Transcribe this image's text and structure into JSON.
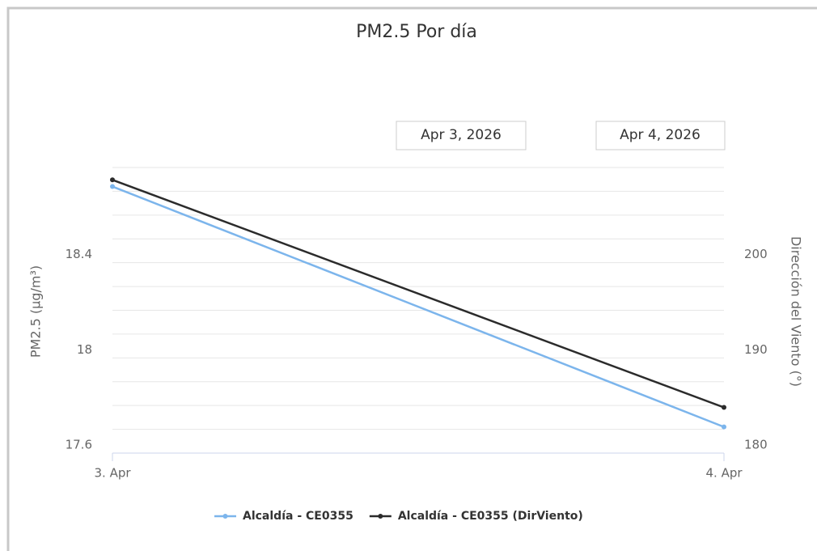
{
  "chart_data": {
    "type": "line",
    "title": "PM2.5 Por día",
    "date_from": "Apr 3, 2026",
    "date_to": "Apr 4, 2026",
    "categories": [
      "3. Apr",
      "4. Apr"
    ],
    "ylabel": "PM2.5 (µg/m³)",
    "y2label": "Dirección del Viento (°)",
    "ylim": [
      17.6,
      18.8
    ],
    "yticks": [
      17.6,
      18,
      18.4
    ],
    "y_minor_ticks": [
      17.7,
      17.8,
      17.9,
      18.1,
      18.2,
      18.3,
      18.5,
      18.6,
      18.7,
      18.8
    ],
    "y2lim": [
      180,
      210
    ],
    "y2ticks": [
      180,
      190,
      200
    ],
    "grid": true,
    "legend": "bottom",
    "series": [
      {
        "name": "Alcaldía - CE0355",
        "color": "#7cb5ec",
        "values": [
          18.72,
          17.71
        ]
      },
      {
        "name": "Alcaldía - CE0355 (DirViento)",
        "color": "#2b2b2b",
        "axis": "y2",
        "values": [
          208.7,
          184.8
        ]
      }
    ]
  }
}
